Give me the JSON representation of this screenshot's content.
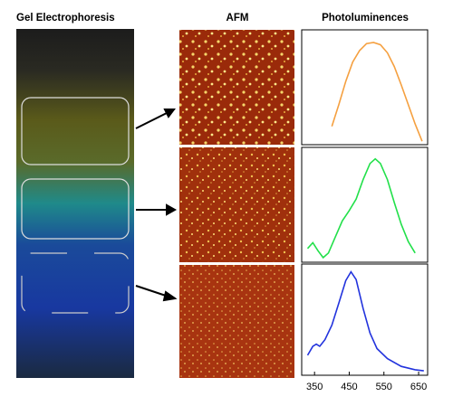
{
  "headings": {
    "gel": "Gel Electrophoresis",
    "afm": "AFM",
    "pl": "Photoluminences"
  },
  "chart_data": [
    {
      "type": "line",
      "x": [
        400,
        420,
        440,
        460,
        480,
        500,
        520,
        540,
        560,
        580,
        600,
        620,
        640,
        660
      ],
      "values": [
        0.16,
        0.35,
        0.55,
        0.72,
        0.82,
        0.88,
        0.89,
        0.87,
        0.8,
        0.68,
        0.52,
        0.35,
        0.18,
        0.03
      ],
      "color": "#f5a040",
      "xlim": [
        313,
        676
      ],
      "ylim": [
        0,
        1
      ]
    },
    {
      "type": "line",
      "x": [
        330,
        345,
        360,
        375,
        390,
        410,
        430,
        450,
        470,
        490,
        510,
        525,
        540,
        560,
        580,
        600,
        620,
        640
      ],
      "values": [
        0.12,
        0.17,
        0.1,
        0.04,
        0.08,
        0.22,
        0.36,
        0.45,
        0.55,
        0.72,
        0.86,
        0.9,
        0.86,
        0.72,
        0.52,
        0.33,
        0.18,
        0.08
      ],
      "color": "#22e04a",
      "xlim": [
        313,
        676
      ],
      "ylim": [
        0,
        1
      ]
    },
    {
      "type": "line",
      "x": [
        330,
        345,
        355,
        365,
        380,
        400,
        420,
        440,
        455,
        470,
        490,
        510,
        530,
        560,
        600,
        640,
        665
      ],
      "values": [
        0.18,
        0.26,
        0.28,
        0.26,
        0.32,
        0.45,
        0.65,
        0.85,
        0.93,
        0.86,
        0.6,
        0.38,
        0.24,
        0.15,
        0.08,
        0.05,
        0.04
      ],
      "color": "#2233dd",
      "xlim": [
        313,
        676
      ],
      "ylim": [
        0,
        1
      ],
      "xticks": [
        350,
        450,
        550,
        650
      ]
    }
  ]
}
